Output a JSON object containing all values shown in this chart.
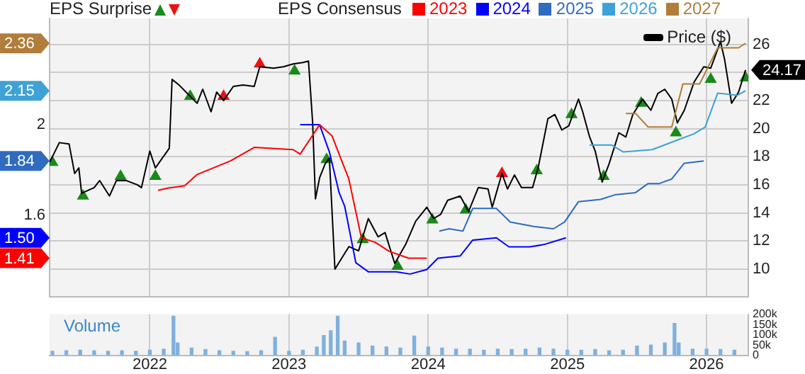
{
  "chart_data": [
    {
      "type": "line",
      "annotations": [
        "EPS Surprise",
        "EPS Consensus",
        "1.41",
        "1.50",
        "1.84",
        "2.15",
        "2.36",
        "24.17"
      ],
      "legend": "top",
      "grid": true,
      "tick_labels": "y",
      "xlim": [
        2021.28,
        2026.3
      ],
      "xticks": [
        2022,
        2023,
        2024,
        2025,
        2026
      ],
      "ylim": [
        1.24,
        2.47
      ],
      "yticks": [
        1.6,
        2
      ],
      "y2lim": [
        8.04,
        27.84
      ],
      "y2ticks": [
        10,
        12,
        14,
        16,
        18,
        20,
        22,
        {
          "value": 24,
          "label": null
        },
        26
      ],
      "series": [
        {
          "name": "2023",
          "color": "#ff0000",
          "x": [
            2022.06,
            2022.13,
            2022.25,
            2022.34,
            2022.58,
            2022.75,
            2023.03,
            2023.08,
            2023.22,
            2023.31,
            2023.36,
            2023.43,
            2023.52,
            2023.62,
            2023.72,
            2023.86,
            2023.99
          ],
          "values": [
            1.71,
            1.72,
            1.73,
            1.78,
            1.84,
            1.9,
            1.89,
            1.87,
            2.0,
            1.95,
            1.87,
            1.76,
            1.5,
            1.48,
            1.44,
            1.41,
            1.41
          ]
        },
        {
          "name": "2024",
          "color": "#0000ff",
          "x": [
            2023.08,
            2023.22,
            2023.29,
            2023.36,
            2023.4,
            2023.48,
            2023.57,
            2023.77,
            2023.87,
            2023.99,
            2024.07,
            2024.23,
            2024.32,
            2024.49,
            2024.58,
            2024.73,
            2024.83,
            2024.99
          ],
          "values": [
            2.0,
            2.0,
            1.88,
            1.7,
            1.64,
            1.39,
            1.35,
            1.35,
            1.34,
            1.36,
            1.41,
            1.42,
            1.49,
            1.5,
            1.46,
            1.46,
            1.47,
            1.5
          ]
        },
        {
          "name": "2025",
          "color": "#2f6cc0",
          "x": [
            2024.08,
            2024.15,
            2024.25,
            2024.32,
            2024.49,
            2024.59,
            2024.76,
            2024.9,
            2024.98,
            2025.08,
            2025.24,
            2025.34,
            2025.49,
            2025.58,
            2025.66,
            2025.75,
            2025.84,
            2025.98
          ],
          "values": [
            1.53,
            1.54,
            1.53,
            1.63,
            1.63,
            1.57,
            1.55,
            1.54,
            1.57,
            1.66,
            1.67,
            1.69,
            1.7,
            1.74,
            1.74,
            1.76,
            1.83,
            1.84
          ]
        },
        {
          "name": "2026",
          "color": "#3ea2d6",
          "x": [
            2025.16,
            2025.32,
            2025.4,
            2025.61,
            2025.78,
            2025.91,
            2025.99,
            2026.08,
            2026.22,
            2026.28
          ],
          "values": [
            1.91,
            1.91,
            1.88,
            1.89,
            1.93,
            1.96,
            1.99,
            2.14,
            2.13,
            2.15
          ]
        },
        {
          "name": "2027",
          "color": "#b07d3a",
          "x": [
            2025.42,
            2025.49,
            2025.58,
            2025.75,
            2025.83,
            2025.95,
            2026.08,
            2026.23,
            2026.28
          ],
          "values": [
            2.05,
            2.05,
            1.99,
            1.99,
            2.18,
            2.18,
            2.34,
            2.34,
            2.36
          ]
        },
        {
          "name": "Price ($)",
          "color": "#000000",
          "axis": "y2",
          "x": [
            2021.28,
            2021.35,
            2021.42,
            2021.46,
            2021.49,
            2021.51,
            2021.6,
            2021.64,
            2021.71,
            2021.76,
            2021.83,
            2021.91,
            2021.94,
            2022.0,
            2022.04,
            2022.09,
            2022.14,
            2022.16,
            2022.21,
            2022.26,
            2022.34,
            2022.38,
            2022.44,
            2022.48,
            2022.53,
            2022.6,
            2022.67,
            2022.75,
            2022.79,
            2022.89,
            2022.96,
            2023.03,
            2023.1,
            2023.14,
            2023.17,
            2023.19,
            2023.22,
            2023.26,
            2023.29,
            2023.33,
            2023.43,
            2023.5,
            2023.57,
            2023.64,
            2023.69,
            2023.76,
            2023.84,
            2023.91,
            2023.99,
            2024.04,
            2024.09,
            2024.14,
            2024.23,
            2024.29,
            2024.36,
            2024.43,
            2024.46,
            2024.53,
            2024.57,
            2024.62,
            2024.67,
            2024.75,
            2024.79,
            2024.86,
            2024.91,
            2024.96,
            2025.01,
            2025.08,
            2025.11,
            2025.16,
            2025.2,
            2025.25,
            2025.3,
            2025.37,
            2025.42,
            2025.47,
            2025.54,
            2025.6,
            2025.65,
            2025.7,
            2025.75,
            2025.79,
            2025.84,
            2025.91,
            2025.98,
            2026.03,
            2026.06,
            2026.1,
            2026.13,
            2026.18,
            2026.23,
            2026.28
          ],
          "values": [
            17.6,
            19.0,
            18.9,
            16.8,
            17.2,
            15.4,
            15.8,
            16.3,
            15.2,
            16.3,
            16.3,
            16.0,
            15.8,
            18.4,
            17.2,
            17.9,
            18.6,
            23.5,
            23.1,
            22.6,
            21.8,
            22.8,
            21.2,
            22.6,
            22.0,
            23.0,
            23.1,
            23.0,
            24.4,
            24.3,
            24.4,
            24.6,
            24.7,
            24.8,
            20.4,
            15.0,
            16.5,
            17.5,
            17.9,
            10.0,
            11.6,
            11.3,
            13.6,
            12.3,
            12.6,
            10.4,
            11.8,
            13.4,
            14.4,
            13.6,
            13.9,
            14.9,
            15.2,
            14.1,
            15.8,
            15.7,
            14.4,
            16.8,
            15.7,
            16.7,
            15.8,
            15.8,
            17.2,
            20.7,
            21.0,
            19.9,
            20.2,
            22.1,
            21.2,
            19.4,
            18.4,
            16.2,
            17.5,
            19.7,
            19.4,
            21.0,
            22.1,
            21.3,
            22.5,
            22.8,
            22.1,
            20.4,
            21.3,
            23.3,
            24.4,
            24.3,
            25.1,
            26.2,
            24.9,
            21.8,
            22.6,
            24.17
          ]
        },
        {
          "type": "scatter",
          "axis": "y2",
          "marker": "triangle",
          "color": "#1a8a1a",
          "x": [
            2021.3,
            2021.52,
            2021.79,
            2022.04,
            2022.29,
            2023.04,
            2023.27,
            2023.53,
            2023.78,
            2024.03,
            2024.27,
            2024.78,
            2025.03,
            2025.26,
            2025.53,
            2025.78,
            2026.03,
            2026.28
          ],
          "values": [
            17.6,
            15.2,
            16.6,
            16.6,
            22.3,
            24.1,
            17.8,
            12.1,
            10.2,
            13.5,
            14.2,
            17.0,
            21.0,
            16.6,
            21.8,
            19.7,
            23.5,
            23.6
          ]
        },
        {
          "type": "scatter",
          "axis": "y2",
          "marker": "triangle",
          "color": "#ee1111",
          "x": [
            2022.53,
            2022.79,
            2024.53
          ],
          "values": [
            22.3,
            24.6,
            16.8
          ]
        }
      ]
    },
    {
      "type": "bar",
      "title": "Volume",
      "grid": "x",
      "xlim": [
        2021.28,
        2026.3
      ],
      "xticks": [
        2022,
        2023,
        2024,
        2025,
        2026
      ],
      "y2lim": [
        0,
        200000
      ],
      "y2ticks": [
        0,
        {
          "value": 50000,
          "label": "50k"
        },
        {
          "value": 100000,
          "label": "100k"
        },
        {
          "value": 150000,
          "label": "150k"
        },
        {
          "value": 200000,
          "label": "200k"
        }
      ],
      "series": [
        {
          "axis": "y2",
          "color": "#7fb0dd",
          "x": [
            2021.3,
            2021.4,
            2021.5,
            2021.6,
            2021.7,
            2021.8,
            2021.9,
            2022.0,
            2022.1,
            2022.17,
            2022.2,
            2022.3,
            2022.4,
            2022.5,
            2022.6,
            2022.7,
            2022.8,
            2022.9,
            2023.0,
            2023.1,
            2023.2,
            2023.25,
            2023.3,
            2023.35,
            2023.4,
            2023.5,
            2023.6,
            2023.7,
            2023.8,
            2023.9,
            2024.0,
            2024.1,
            2024.2,
            2024.3,
            2024.4,
            2024.5,
            2024.6,
            2024.7,
            2024.8,
            2024.9,
            2025.0,
            2025.1,
            2025.2,
            2025.3,
            2025.4,
            2025.5,
            2025.6,
            2025.7,
            2025.77,
            2025.8,
            2025.9,
            2026.0,
            2026.1,
            2026.2
          ],
          "values": [
            20000,
            22000,
            25000,
            22000,
            20000,
            22000,
            20000,
            25000,
            30000,
            190000,
            60000,
            35000,
            28000,
            22000,
            20000,
            18000,
            22000,
            88000,
            20000,
            25000,
            40000,
            96000,
            120000,
            190000,
            70000,
            60000,
            45000,
            40000,
            35000,
            94000,
            40000,
            35000,
            30000,
            30000,
            25000,
            30000,
            28000,
            30000,
            35000,
            30000,
            25000,
            25000,
            28000,
            22000,
            25000,
            45000,
            50000,
            60000,
            155000,
            60000,
            30000,
            30000,
            28000,
            25000
          ]
        }
      ]
    }
  ]
}
